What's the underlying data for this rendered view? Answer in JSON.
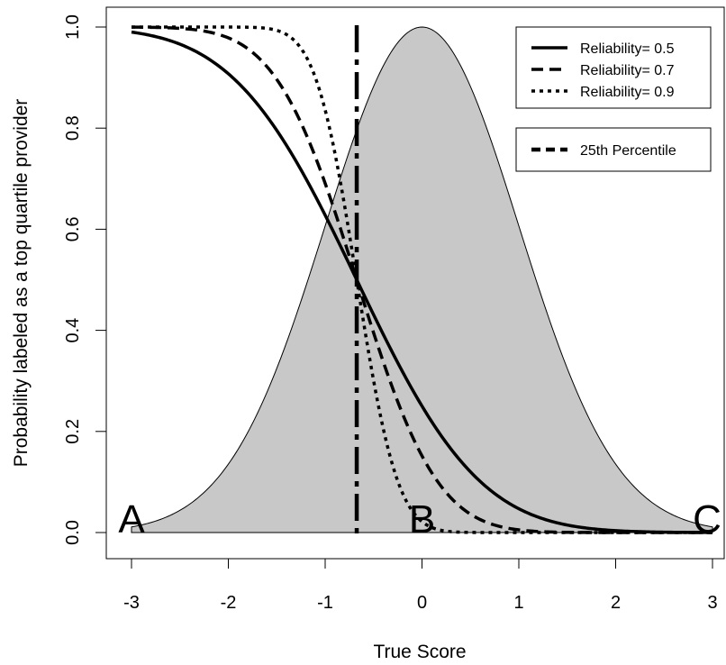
{
  "chart_data": {
    "type": "line",
    "xlabel": "True Score",
    "ylabel": "Probability labeled as a top quartile provider",
    "xlim": [
      -3,
      3
    ],
    "ylim": [
      0,
      1
    ],
    "x_ticks": [
      -3,
      -2,
      -1,
      0,
      1,
      2,
      3
    ],
    "x_tick_labels": [
      "-3",
      "-2",
      "-1",
      "0",
      "1",
      "2",
      "3"
    ],
    "y_ticks": [
      0,
      0.2,
      0.4,
      0.6,
      0.8,
      1
    ],
    "y_tick_labels": [
      "0.0",
      "0.2",
      "0.4",
      "0.6",
      "0.8",
      "1.0"
    ],
    "grid": false,
    "threshold": -0.674,
    "series": [
      {
        "name": "Reliability= 0.5",
        "reliability": 0.5,
        "style": "solid"
      },
      {
        "name": "Reliability= 0.7",
        "reliability": 0.7,
        "style": "dashed"
      },
      {
        "name": "Reliability= 0.9",
        "reliability": 0.9,
        "style": "dotted"
      }
    ],
    "density": {
      "type": "area",
      "distribution": "standard normal, scaled to peak 1.0",
      "fill": "#c8c8c8"
    },
    "vertical_line": {
      "name": "25th Percentile",
      "x": -0.674,
      "style": "dashed"
    },
    "legend_placement": "top-right",
    "annotations": [
      {
        "text": "A",
        "x": -3,
        "y": 0
      },
      {
        "text": "B",
        "x": 0,
        "y": 0
      },
      {
        "text": "C",
        "x": 3,
        "y": 0
      }
    ]
  }
}
